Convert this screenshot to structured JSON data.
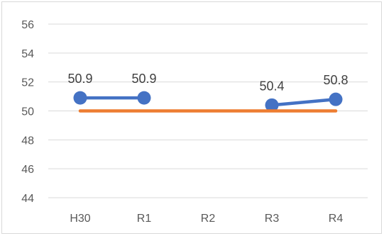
{
  "chart_data": {
    "type": "line",
    "categories": [
      "H30",
      "R1",
      "R2",
      "R3",
      "R4"
    ],
    "ylim": [
      44,
      56
    ],
    "y_ticks": [
      56,
      54,
      52,
      50,
      48,
      46,
      44
    ],
    "grid": true,
    "series": [
      {
        "color": "#4472C4",
        "values": [
          50.9,
          50.9,
          null,
          50.4,
          50.8
        ],
        "labels": [
          "50.9",
          "50.9",
          "",
          "50.4",
          "50.8"
        ],
        "markers": true
      },
      {
        "color": "#ED7D31",
        "values": [
          50,
          50,
          50,
          50,
          50
        ],
        "markers": false
      }
    ]
  }
}
